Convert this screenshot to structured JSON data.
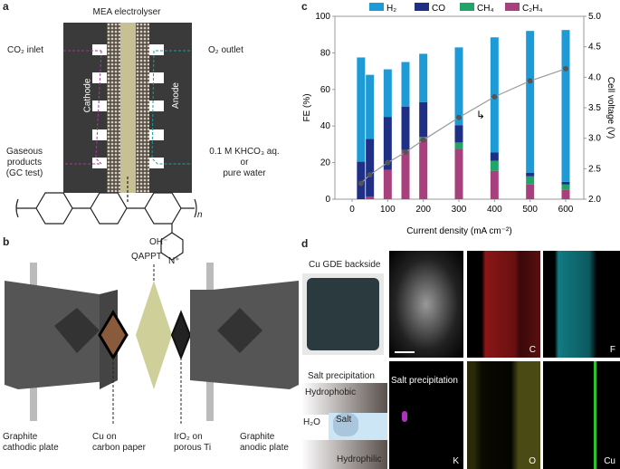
{
  "panels": {
    "a": {
      "letter": "a",
      "title": "MEA electrolyser",
      "co2_inlet": "CO₂ inlet",
      "o2_outlet": "O₂ outlet",
      "cathode": "Cathode",
      "anode": "Anode",
      "gaseous": [
        "Gaseous",
        "products",
        "(GC test)"
      ],
      "feed": [
        "0.1 M KHCO₃ aq.",
        "or",
        "pure water"
      ],
      "polymer_n": "n",
      "hydroxide": "OH⁻",
      "nitrogen": "N⁺"
    },
    "b": {
      "letter": "b",
      "qappt": "QAPPT",
      "labels": [
        [
          "Graphite",
          "cathodic plate"
        ],
        [
          "Cu on",
          "carbon paper"
        ],
        [
          "IrO₂ on",
          "porous Ti"
        ],
        [
          "Graphite",
          "anodic plate"
        ]
      ]
    },
    "c": {
      "letter": "c",
      "arrow_glyph": "↳"
    },
    "d": {
      "letter": "d",
      "photo_title": "Cu GDE backside",
      "schematic_title": "Salt precipitation",
      "hydrophobic": "Hydrophobic",
      "hydrophilic": "Hydrophilic",
      "water": "H₂O",
      "salt": "Salt",
      "salt_precip": "Salt precipitation",
      "maps": [
        "",
        "C",
        "F",
        "K",
        "O",
        "Cu"
      ]
    }
  },
  "chart_data": {
    "type": "bar",
    "xlabel": "Current density (mA cm⁻²)",
    "ylabel": "FE (%)",
    "y2label": "Cell voltage (V)",
    "xlim": [
      0,
      600
    ],
    "ylim": [
      0,
      100
    ],
    "y2lim": [
      2.0,
      5.0
    ],
    "xticks": [
      0,
      100,
      200,
      300,
      400,
      500,
      600
    ],
    "yticks": [
      0,
      20,
      40,
      60,
      80,
      100
    ],
    "y2ticks": [
      "2.0",
      "2.5",
      "3.0",
      "3.5",
      "4.0",
      "4.5",
      "5.0"
    ],
    "legend_placement": "top",
    "x": [
      25,
      50,
      100,
      150,
      200,
      300,
      400,
      500,
      600
    ],
    "series": [
      {
        "name": "C₂H₄",
        "color": "#a8407e",
        "values": [
          0,
          1.5,
          16,
          27,
          33,
          27.5,
          15.5,
          8,
          5
        ]
      },
      {
        "name": "CH₄",
        "color": "#21a36a",
        "values": [
          0,
          0,
          0,
          0,
          1,
          3.5,
          5.5,
          4.5,
          3
        ]
      },
      {
        "name": "CO",
        "color": "#1f2f86",
        "values": [
          20.5,
          31.5,
          29,
          23.5,
          19,
          9.5,
          4.5,
          2,
          1.5
        ]
      },
      {
        "name": "H₂",
        "color": "#1e9bd7",
        "values": [
          57,
          35,
          26,
          24.5,
          26.5,
          42.5,
          63,
          77.5,
          83
        ]
      }
    ],
    "legend_order": [
      "H₂",
      "CO",
      "CH₄",
      "C₂H₄"
    ],
    "voltage": {
      "color": "#555555",
      "values": [
        2.26,
        2.4,
        2.6,
        2.77,
        2.97,
        3.34,
        3.68,
        3.94,
        4.14
      ]
    }
  }
}
